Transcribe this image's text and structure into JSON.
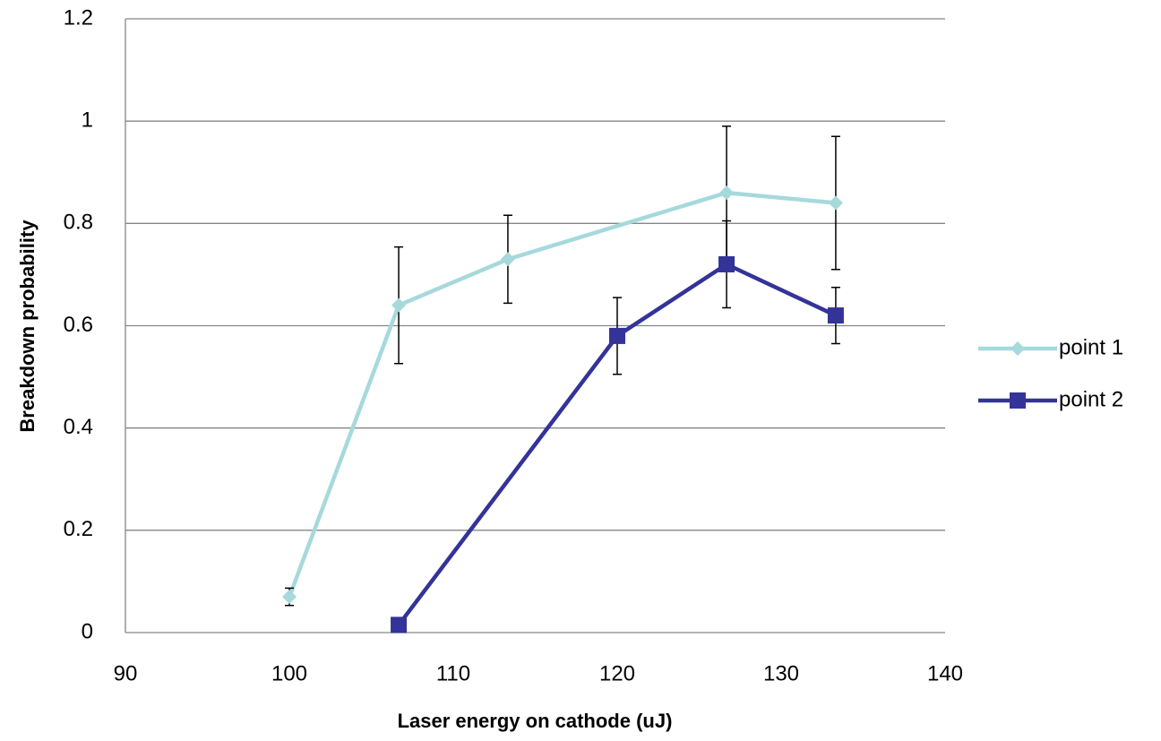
{
  "chart_data": {
    "type": "line",
    "x_label": "Laser energy on cathode (uJ)",
    "y_label": "Breakdown probability",
    "xlim": [
      90,
      140
    ],
    "xticks": [
      90,
      100,
      110,
      120,
      130,
      140
    ],
    "ylim": [
      0,
      1.2
    ],
    "yticks": [
      0,
      0.2,
      0.4,
      0.6,
      0.8,
      1,
      1.2
    ],
    "grid": true,
    "legend": "right",
    "series": [
      {
        "name": "point 1",
        "color": "#a6d9dc",
        "marker": "diamond",
        "x": [
          100,
          106.67,
          113.33,
          126.67,
          133.33
        ],
        "values": [
          0.07,
          0.64,
          0.73,
          0.86,
          0.84
        ],
        "errors": [
          0.017,
          0.114,
          0.086,
          0.13,
          0.13
        ]
      },
      {
        "name": "point 2",
        "color": "#333399",
        "marker": "square",
        "x": [
          106.67,
          120,
          126.67,
          133.33
        ],
        "values": [
          0.015,
          0.58,
          0.72,
          0.62
        ],
        "errors": [
          null,
          0.075,
          0.085,
          0.055
        ]
      }
    ]
  }
}
